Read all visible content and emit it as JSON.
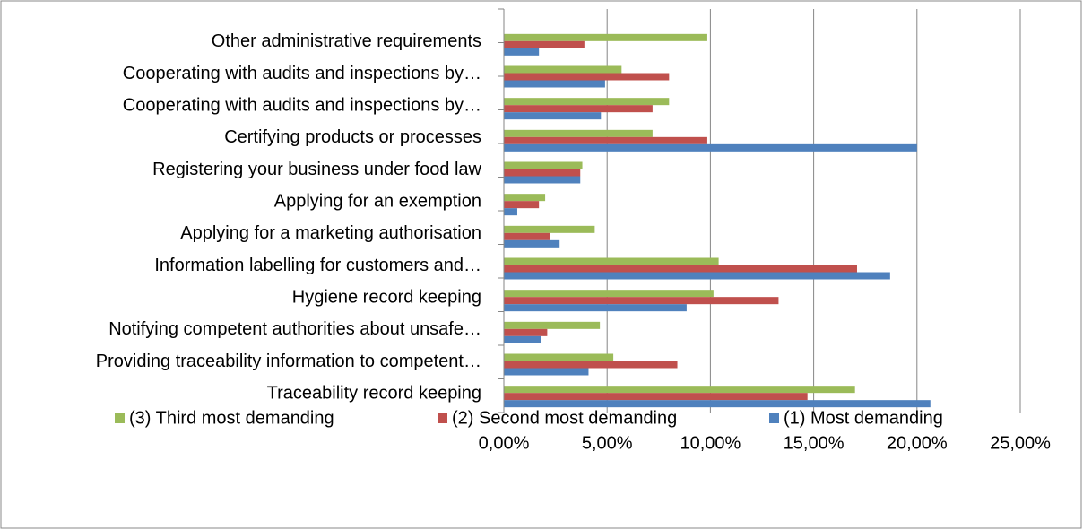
{
  "chart_data": {
    "type": "bar",
    "orientation": "horizontal",
    "categories": [
      "Other administrative requirements",
      "Cooperating with audits and inspections by…",
      "Cooperating with audits and inspections by…",
      "Certifying products or processes",
      "Registering your business under food law",
      "Applying for an exemption",
      "Applying for a marketing authorisation",
      "Information labelling for customers and…",
      "Hygiene record keeping",
      "Notifying competent authorities about unsafe…",
      "Providing traceability information to competent…",
      "Traceability record keeping"
    ],
    "series": [
      {
        "name": "(3) Third most demanding",
        "color": "#9bbb59",
        "values": [
          9.85,
          5.7,
          8.0,
          7.2,
          3.8,
          2.0,
          4.4,
          10.4,
          10.15,
          4.65,
          5.3,
          17.0
        ]
      },
      {
        "name": "(2) Second most demanding",
        "color": "#c0504d",
        "values": [
          3.9,
          8.0,
          7.2,
          9.85,
          3.7,
          1.7,
          2.25,
          17.1,
          13.3,
          2.1,
          8.4,
          14.7
        ]
      },
      {
        "name": "(1) Most demanding",
        "color": "#4f81bd",
        "values": [
          1.7,
          4.9,
          4.7,
          20.0,
          3.7,
          0.65,
          2.7,
          18.7,
          8.85,
          1.8,
          4.1,
          20.65
        ]
      }
    ],
    "xlim": [
      0,
      25
    ],
    "xticks": [
      {
        "value": 0,
        "label": "0,00%"
      },
      {
        "value": 5,
        "label": "5,00%"
      },
      {
        "value": 10,
        "label": "10,00%"
      },
      {
        "value": 15,
        "label": "15,00%"
      },
      {
        "value": 20,
        "label": "20,00%"
      },
      {
        "value": 25,
        "label": "25,00%"
      }
    ],
    "grid": true,
    "legend": "bottom"
  }
}
